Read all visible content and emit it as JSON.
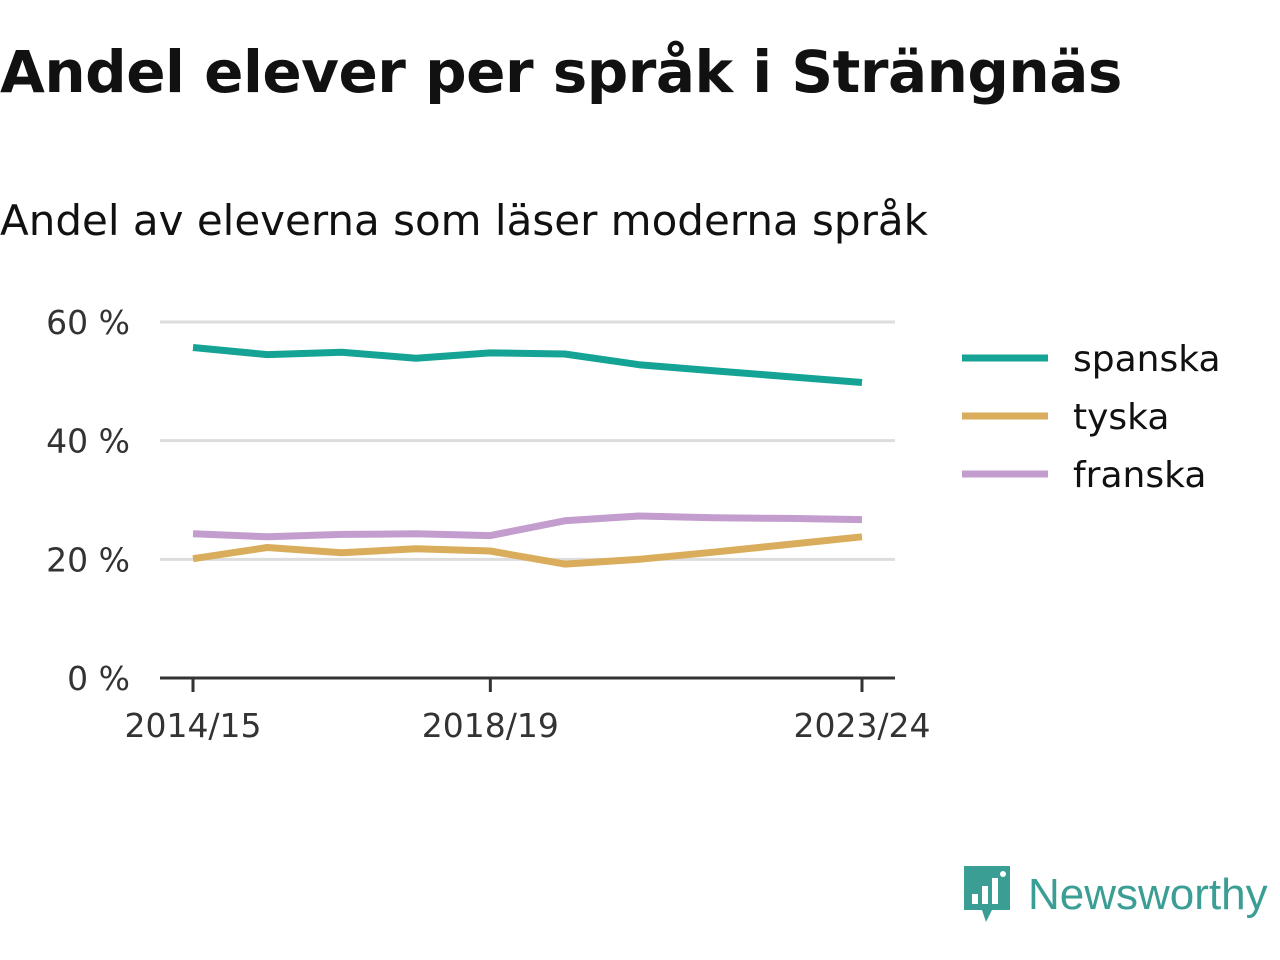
{
  "title": "Andel elever per språk i Strängnäs",
  "subtitle": "Andel av eleverna som läser moderna språk",
  "brand": {
    "name": "Newsworthy",
    "icon": "bar-chart-speech-bubble-icon",
    "color": "#3a9e95"
  },
  "chart_data": {
    "type": "line",
    "x": [
      "2014/15",
      "2015/16",
      "2016/17",
      "2017/18",
      "2018/19",
      "2019/20",
      "2020/21",
      "2021/22",
      "2022/23",
      "2023/24"
    ],
    "x_tick_labels": [
      "2014/15",
      "2018/19",
      "2023/24"
    ],
    "y_ticks": [
      0,
      20,
      40,
      60
    ],
    "y_tick_labels": [
      "0 %",
      "20 %",
      "40 %",
      "60 %"
    ],
    "ylim": [
      0,
      62
    ],
    "grid": true,
    "legend_position": "right",
    "series": [
      {
        "name": "spanska",
        "color": "#14a394",
        "values": [
          55.7,
          54.5,
          54.9,
          53.9,
          54.8,
          54.6,
          52.8,
          51.8,
          50.8,
          49.8
        ]
      },
      {
        "name": "tyska",
        "color": "#d9ad5b",
        "values": [
          20.1,
          22.0,
          21.1,
          21.8,
          21.4,
          19.2,
          20.0,
          21.2,
          22.5,
          23.8
        ]
      },
      {
        "name": "franska",
        "color": "#c39dce",
        "values": [
          24.3,
          23.8,
          24.2,
          24.3,
          24.0,
          26.5,
          27.3,
          27.0,
          26.9,
          26.7
        ]
      }
    ]
  }
}
